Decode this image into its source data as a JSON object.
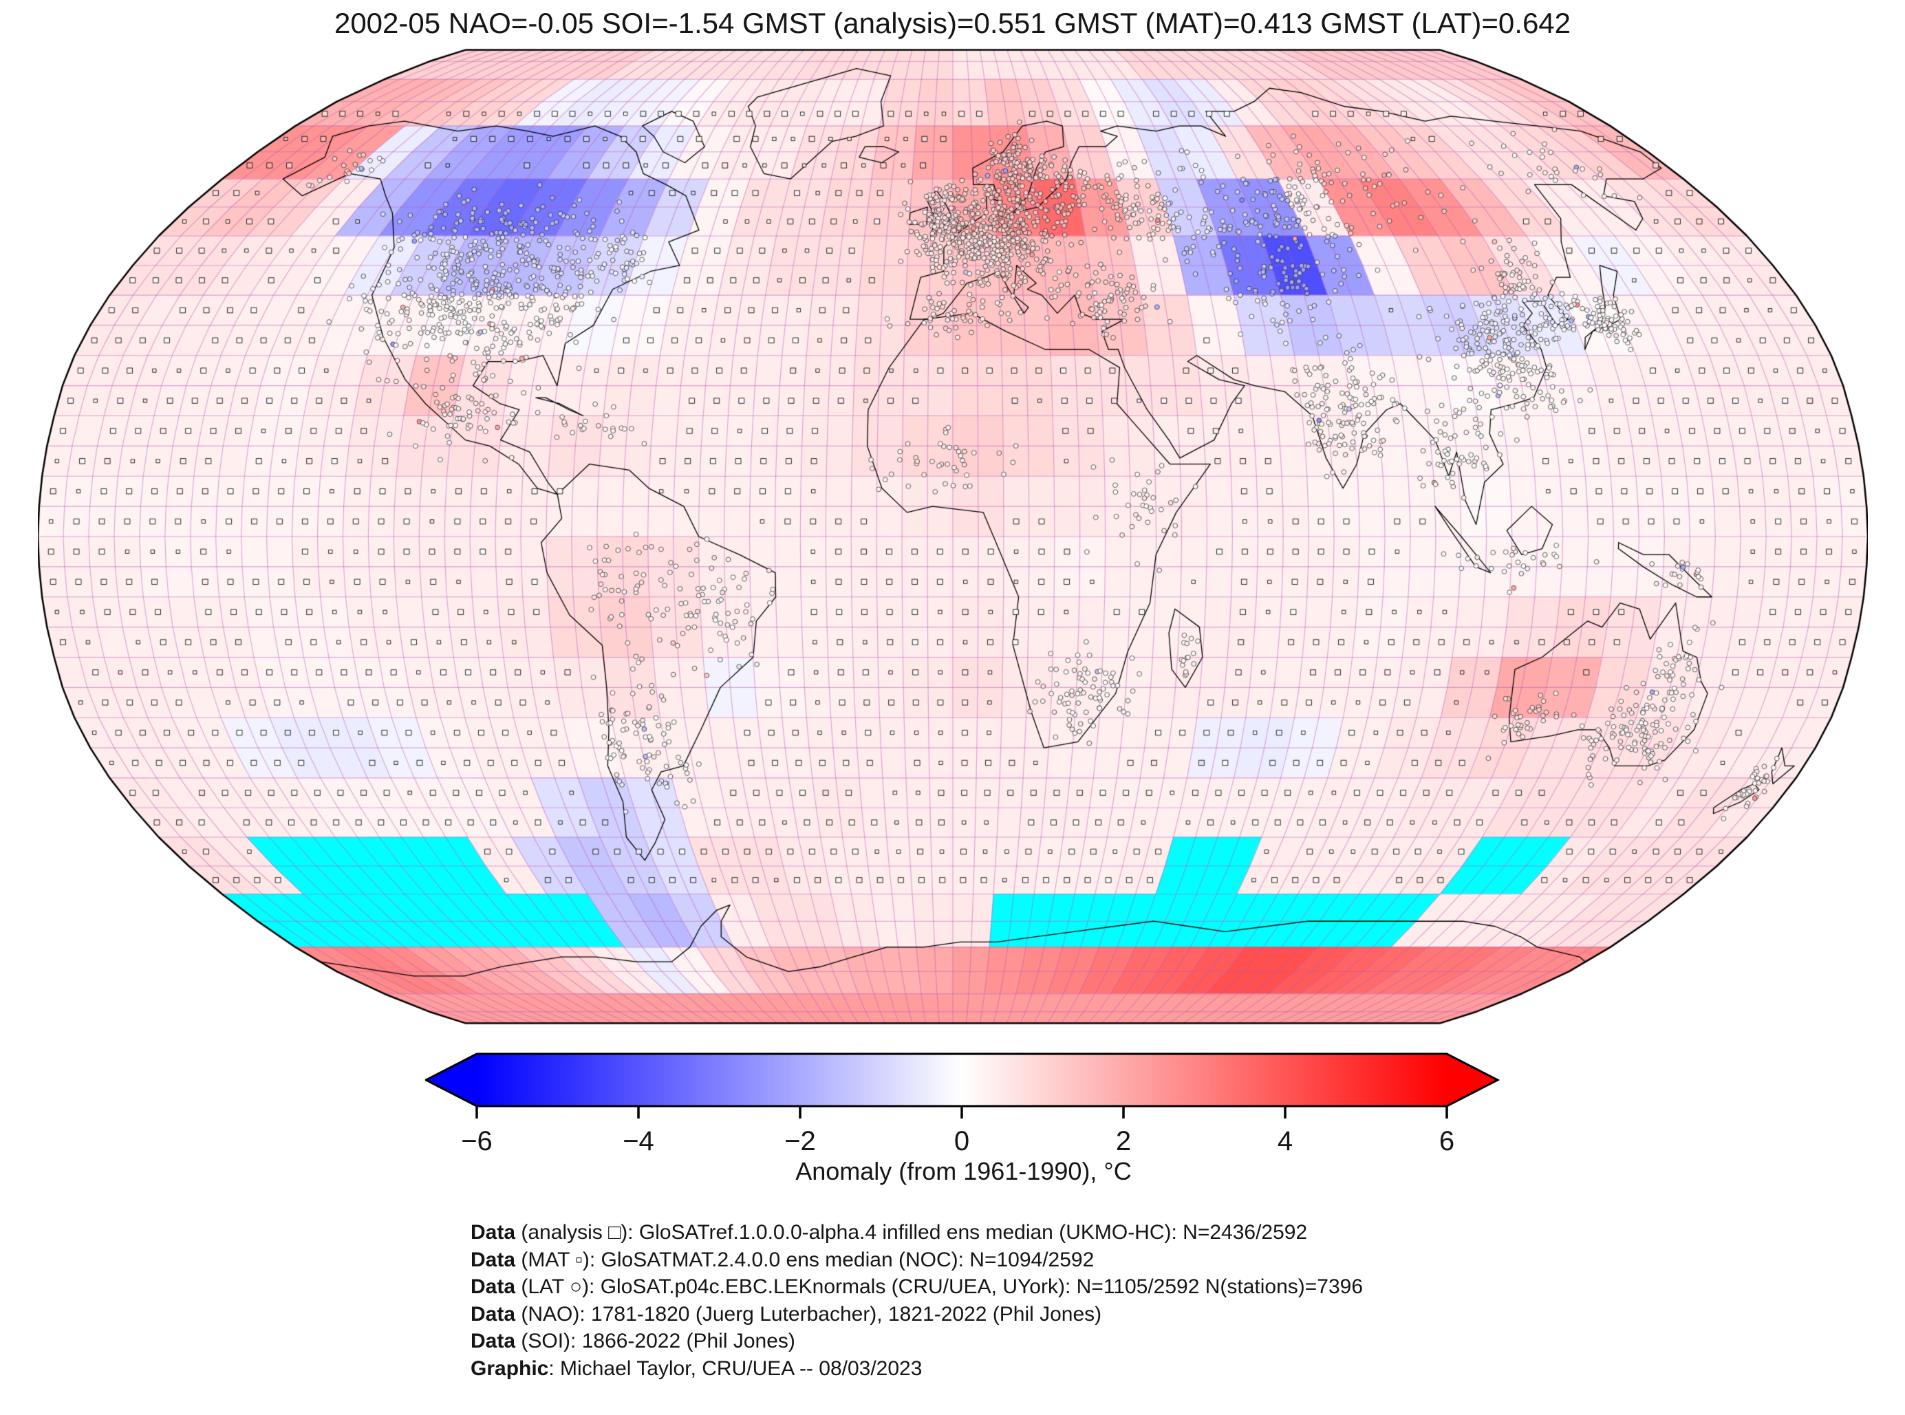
{
  "title": "2002-05 NAO=-0.05 SOI=-1.54 GMST (analysis)=0.551 GMST (MAT)=0.413 GMST (LAT)=0.642",
  "indices": {
    "period": "2002-05",
    "NAO": -0.05,
    "SOI": -1.54,
    "GMST_analysis": 0.551,
    "GMST_MAT": 0.413,
    "GMST_LAT": 0.642
  },
  "colorbar": {
    "label": "Anomaly (from 1961-1990), °C",
    "min": -6,
    "max": 6,
    "tick_values": [
      -6,
      -4,
      -2,
      0,
      2,
      4,
      6
    ],
    "tick_labels": [
      "−6",
      "−4",
      "−2",
      "0",
      "2",
      "4",
      "6"
    ],
    "color_negative": "#0000ff",
    "color_zero": "#ffffff",
    "color_positive": "#ff0000",
    "missing_color": "#00ffff"
  },
  "markers": {
    "analysis": {
      "symbol": "□",
      "coverage": "N=2436/2592"
    },
    "mat": {
      "symbol": "▫",
      "coverage": "N=1094/2592"
    },
    "lat": {
      "symbol": "○",
      "coverage": "N=1105/2592",
      "stations": 7396
    }
  },
  "credits": [
    {
      "bold": "Data",
      "text": " (analysis □): GloSATref.1.0.0.0-alpha.4 infilled ens median (UKMO-HC): N=2436/2592"
    },
    {
      "bold": "Data",
      "text": " (MAT ▫): GloSATMAT.2.4.0.0 ens median (NOC): N=1094/2592"
    },
    {
      "bold": "Data",
      "text": " (LAT ○): GloSAT.p04c.EBC.LEKnormals (CRU/UEA, UYork): N=1105/2592 N(stations)=7396"
    },
    {
      "bold": "Data",
      "text": " (NAO): 1781-1820 (Juerg Luterbacher), 1821-2022 (Phil Jones)"
    },
    {
      "bold": "Data",
      "text": " (SOI): 1866-2022 (Phil Jones)"
    },
    {
      "bold": "Graphic",
      "text": ": Michael Taylor, CRU/UEA -- 08/03/2023"
    }
  ],
  "chart_data": {
    "type": "heatmap",
    "projection": "Robinson",
    "title": "2002-05 NAO=-0.05 SOI=-1.54 GMST (analysis)=0.551 GMST (MAT)=0.413 GMST (LAT)=0.642",
    "colormap": "blue-white-red",
    "domain": [
      -6,
      6
    ],
    "units": "°C anomaly from 1961-1990",
    "missing_value": null,
    "cell_size_deg": 10,
    "lat_centers": [
      85,
      75,
      65,
      55,
      45,
      35,
      25,
      15,
      5,
      -5,
      -15,
      -25,
      -35,
      -45,
      -55,
      -65,
      -75,
      -85
    ],
    "lon_centers": [
      -175,
      -165,
      -155,
      -145,
      -135,
      -125,
      -115,
      -105,
      -95,
      -85,
      -75,
      -65,
      -55,
      -45,
      -35,
      -25,
      -15,
      -5,
      5,
      15,
      25,
      35,
      45,
      55,
      65,
      75,
      85,
      95,
      105,
      115,
      125,
      135,
      145,
      155,
      165,
      175
    ],
    "anomaly_grid": [
      [
        1.2,
        1.2,
        1.2,
        1.2,
        1.2,
        1.2,
        1.2,
        0.8,
        0.8,
        0.8,
        0.8,
        0.8,
        0.8,
        0.9,
        0.9,
        0.9,
        0.9,
        0.9,
        0.6,
        0.6,
        0.6,
        0.6,
        0.6,
        0.6,
        1.0,
        1.0,
        1.0,
        1.0,
        1.0,
        1.0,
        1.4,
        1.4,
        1.4,
        1.4,
        1.4,
        1.4
      ],
      [
        2.0,
        2.0,
        1.8,
        1.5,
        1.2,
        1.0,
        -0.3,
        -0.5,
        -0.4,
        -0.3,
        0.2,
        0.5,
        0.6,
        0.6,
        0.5,
        0.5,
        1.0,
        1.2,
        1.0,
        1.5,
        1.2,
        0.8,
        0.2,
        -0.5,
        -0.8,
        -0.5,
        0.5,
        1.0,
        1.2,
        1.0,
        0.8,
        0.6,
        0.5,
        0.8,
        1.2,
        1.5
      ],
      [
        2.8,
        2.8,
        2.5,
        -0.5,
        -1.5,
        -2.2,
        -2.5,
        -2.5,
        -2.0,
        -1.2,
        -0.5,
        0.3,
        0.5,
        0.5,
        0.8,
        1.0,
        1.5,
        2.2,
        2.8,
        2.8,
        2.0,
        1.2,
        0.3,
        -0.8,
        -0.5,
        0.8,
        1.8,
        2.2,
        2.0,
        1.5,
        1.2,
        0.8,
        0.8,
        1.0,
        1.2,
        1.8
      ],
      [
        1.2,
        1.5,
        1.2,
        0.5,
        -1.8,
        -2.8,
        -3.5,
        -3.8,
        -3.5,
        -2.8,
        -2.0,
        -1.0,
        0.3,
        0.8,
        0.8,
        1.0,
        1.2,
        1.5,
        2.2,
        3.2,
        3.8,
        2.5,
        1.2,
        -1.2,
        -2.5,
        -2.8,
        0.5,
        2.8,
        3.2,
        2.8,
        1.8,
        1.0,
        0.5,
        0.5,
        0.8,
        1.0
      ],
      [
        0.8,
        0.8,
        0.6,
        0.5,
        0.3,
        -0.5,
        -1.2,
        -1.8,
        -1.8,
        -1.5,
        -1.0,
        -0.3,
        0.3,
        0.6,
        0.8,
        0.8,
        1.0,
        1.2,
        1.5,
        1.8,
        1.8,
        1.5,
        0.5,
        -2.0,
        -3.5,
        -4.5,
        -2.5,
        0.3,
        1.2,
        1.5,
        0.8,
        0.3,
        -0.3,
        0.3,
        0.5,
        0.6
      ],
      [
        0.6,
        0.5,
        0.5,
        0.4,
        0.4,
        0.3,
        0.3,
        0.2,
        0.3,
        0.3,
        -0.2,
        0.2,
        0.4,
        0.5,
        0.5,
        0.6,
        0.8,
        1.2,
        1.5,
        1.5,
        1.8,
        1.5,
        1.0,
        0.3,
        -1.0,
        -1.5,
        -1.2,
        -1.0,
        -1.2,
        -0.8,
        -0.5,
        0.2,
        0.3,
        0.4,
        0.5,
        0.5
      ],
      [
        0.5,
        0.5,
        0.4,
        0.4,
        0.3,
        0.5,
        0.8,
        1.5,
        0.8,
        0.5,
        0.5,
        0.6,
        0.5,
        0.5,
        0.5,
        0.6,
        0.8,
        0.8,
        1.0,
        1.0,
        0.8,
        0.8,
        0.8,
        0.6,
        0.5,
        0.4,
        0.3,
        0.3,
        0.2,
        0.3,
        0.3,
        0.4,
        0.4,
        0.5,
        0.5,
        0.5
      ],
      [
        0.4,
        0.4,
        0.4,
        0.4,
        0.3,
        0.4,
        0.6,
        0.8,
        0.8,
        0.6,
        0.8,
        0.6,
        0.5,
        0.4,
        0.5,
        0.6,
        0.8,
        1.0,
        1.2,
        1.0,
        0.8,
        0.6,
        0.5,
        0.5,
        0.4,
        0.4,
        0.3,
        0.3,
        0.3,
        0.3,
        0.3,
        0.4,
        0.4,
        0.4,
        0.4,
        0.4
      ],
      [
        0.3,
        0.3,
        0.3,
        0.3,
        0.3,
        0.3,
        0.4,
        0.5,
        0.5,
        0.5,
        0.4,
        0.4,
        0.4,
        0.4,
        0.4,
        0.5,
        0.5,
        0.6,
        0.8,
        0.6,
        0.6,
        0.5,
        0.5,
        0.4,
        0.4,
        0.3,
        0.3,
        0.3,
        0.2,
        0.3,
        0.3,
        0.3,
        0.3,
        0.4,
        0.4,
        0.3
      ],
      [
        0.4,
        0.4,
        0.3,
        0.3,
        0.3,
        0.4,
        0.4,
        0.5,
        0.5,
        0.5,
        0.8,
        1.0,
        0.8,
        0.5,
        0.4,
        0.4,
        0.5,
        0.5,
        0.5,
        0.4,
        0.3,
        0.4,
        0.4,
        0.4,
        0.4,
        0.4,
        0.3,
        0.3,
        0.3,
        0.3,
        0.3,
        0.3,
        0.4,
        0.4,
        0.4,
        0.4
      ],
      [
        0.5,
        0.4,
        0.4,
        0.4,
        0.3,
        0.3,
        0.4,
        0.4,
        0.5,
        0.6,
        1.0,
        1.2,
        0.8,
        0.5,
        0.4,
        0.4,
        0.5,
        0.5,
        0.6,
        0.5,
        0.5,
        0.4,
        0.4,
        0.5,
        0.4,
        0.4,
        0.3,
        0.4,
        0.5,
        0.8,
        1.0,
        0.8,
        0.5,
        0.5,
        0.4,
        0.5
      ],
      [
        0.5,
        0.5,
        0.4,
        0.4,
        0.3,
        0.3,
        0.3,
        0.4,
        0.4,
        0.5,
        0.6,
        0.8,
        0.5,
        -0.3,
        0.3,
        0.4,
        0.5,
        0.6,
        0.8,
        0.6,
        0.5,
        0.4,
        0.5,
        0.5,
        0.4,
        0.4,
        0.4,
        0.5,
        1.2,
        2.2,
        2.0,
        1.0,
        0.6,
        0.5,
        0.5,
        0.5
      ],
      [
        0.5,
        0.5,
        0.4,
        -0.3,
        -0.5,
        -0.5,
        -0.3,
        0.3,
        0.4,
        0.4,
        0.3,
        0.4,
        0.4,
        0.4,
        0.4,
        0.5,
        0.5,
        0.5,
        0.5,
        0.5,
        0.4,
        0.4,
        0.4,
        -0.4,
        -0.5,
        -0.3,
        0.4,
        0.6,
        0.8,
        1.0,
        0.8,
        0.8,
        0.8,
        0.6,
        0.5,
        0.5
      ],
      [
        0.6,
        0.5,
        0.5,
        0.4,
        0.3,
        0.3,
        0.3,
        0.3,
        0.4,
        -0.8,
        -1.2,
        -0.8,
        0.4,
        0.5,
        0.5,
        0.6,
        0.5,
        0.5,
        0.5,
        0.5,
        0.5,
        0.4,
        0.4,
        0.4,
        0.4,
        0.4,
        0.5,
        0.5,
        0.6,
        0.6,
        0.8,
        0.8,
        0.8,
        0.6,
        0.8,
        0.6
      ],
      [
        0.8,
        0.6,
        null,
        null,
        null,
        null,
        null,
        0.5,
        -1.0,
        -1.5,
        -1.2,
        -0.8,
        0.8,
        0.8,
        0.6,
        0.5,
        0.5,
        0.5,
        0.5,
        0.5,
        0.4,
        0.4,
        0.5,
        null,
        null,
        0.5,
        0.5,
        0.5,
        0.5,
        0.6,
        null,
        null,
        0.6,
        0.8,
        0.8,
        0.8
      ],
      [
        null,
        null,
        null,
        null,
        null,
        null,
        null,
        null,
        null,
        -1.5,
        -1.8,
        -1.2,
        0.5,
        0.8,
        0.8,
        0.6,
        0.5,
        0.6,
        0.6,
        null,
        null,
        null,
        null,
        null,
        null,
        null,
        null,
        null,
        null,
        null,
        0.5,
        0.5,
        0.6,
        0.6,
        0.8,
        0.8
      ],
      [
        3.0,
        3.2,
        3.0,
        2.5,
        2.2,
        2.0,
        1.5,
        1.0,
        0.5,
        -0.5,
        0.3,
        1.0,
        1.5,
        1.8,
        1.8,
        2.0,
        2.0,
        2.2,
        2.5,
        2.8,
        3.0,
        3.2,
        3.5,
        3.8,
        4.0,
        4.2,
        4.5,
        4.5,
        4.2,
        4.0,
        3.8,
        3.5,
        3.5,
        3.2,
        3.0,
        3.0
      ],
      [
        2.5,
        2.5,
        2.5,
        2.5,
        2.5,
        2.5,
        2.5,
        2.5,
        2.5,
        2.5,
        2.5,
        2.5,
        2.5,
        2.5,
        2.5,
        2.5,
        2.5,
        2.5,
        2.5,
        2.5,
        2.5,
        2.5,
        2.5,
        2.5,
        2.5,
        2.5,
        2.5,
        2.5,
        2.5,
        2.5,
        2.5,
        2.5,
        2.5,
        2.5,
        2.5,
        2.5
      ]
    ],
    "grid_line_color": "#b858b8",
    "legend_position": "bottom"
  }
}
